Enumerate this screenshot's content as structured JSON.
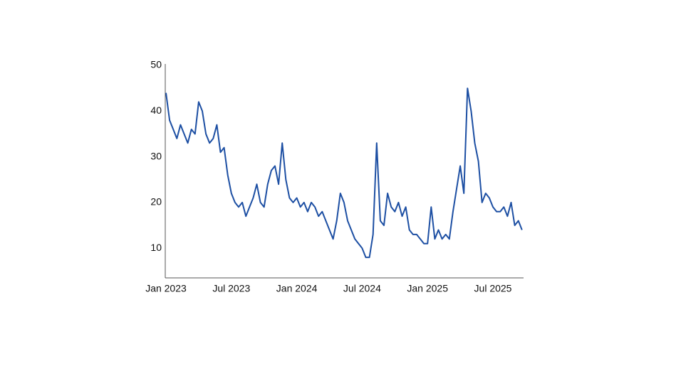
{
  "chart_data": {
    "type": "line",
    "categories": [
      "Jan 2023",
      null,
      null,
      null,
      null,
      null,
      null,
      null,
      null,
      null,
      null,
      null,
      null,
      null,
      null,
      null,
      null,
      null,
      "Jul 2023",
      null,
      null,
      null,
      null,
      null,
      null,
      null,
      null,
      null,
      null,
      null,
      null,
      null,
      null,
      null,
      null,
      null,
      "Jan 2024",
      null,
      null,
      null,
      null,
      null,
      null,
      null,
      null,
      null,
      null,
      null,
      null,
      null,
      null,
      null,
      null,
      null,
      "Jul 2024",
      null,
      null,
      null,
      null,
      null,
      null,
      null,
      null,
      null,
      null,
      null,
      null,
      null,
      null,
      null,
      null,
      null,
      "Jan 2025",
      null,
      null,
      null,
      null,
      null,
      null,
      null,
      null,
      null,
      null,
      null,
      null,
      null,
      null,
      null,
      null,
      null,
      "Jul 2025",
      null,
      null,
      null,
      null,
      null,
      null,
      null,
      null
    ],
    "series": [
      {
        "color": "#1d4fa3",
        "values": [
          44,
          38,
          36,
          34,
          37,
          35,
          33,
          36,
          35,
          42,
          40,
          35,
          33,
          34,
          37,
          31,
          32,
          26,
          22,
          20,
          19,
          20,
          17,
          19,
          21,
          24,
          20,
          19,
          24,
          27,
          28,
          24,
          33,
          25,
          21,
          20,
          21,
          19,
          20,
          18,
          20,
          19,
          17,
          18,
          16,
          14,
          12,
          16,
          22,
          20,
          16,
          14,
          12,
          11,
          10,
          8,
          8,
          13,
          33,
          16,
          15,
          22,
          19,
          18,
          20,
          17,
          19,
          14,
          13,
          13,
          12,
          11,
          11,
          19,
          12,
          14,
          12,
          13,
          12,
          18,
          23,
          28,
          22,
          45,
          40,
          33,
          29,
          20,
          22,
          21,
          19,
          18,
          18,
          19,
          17,
          20,
          15,
          16,
          14
        ]
      }
    ],
    "ylim": [
      3.5,
      50
    ],
    "yticks": [
      10,
      20,
      30,
      40,
      50
    ],
    "grid": false
  }
}
